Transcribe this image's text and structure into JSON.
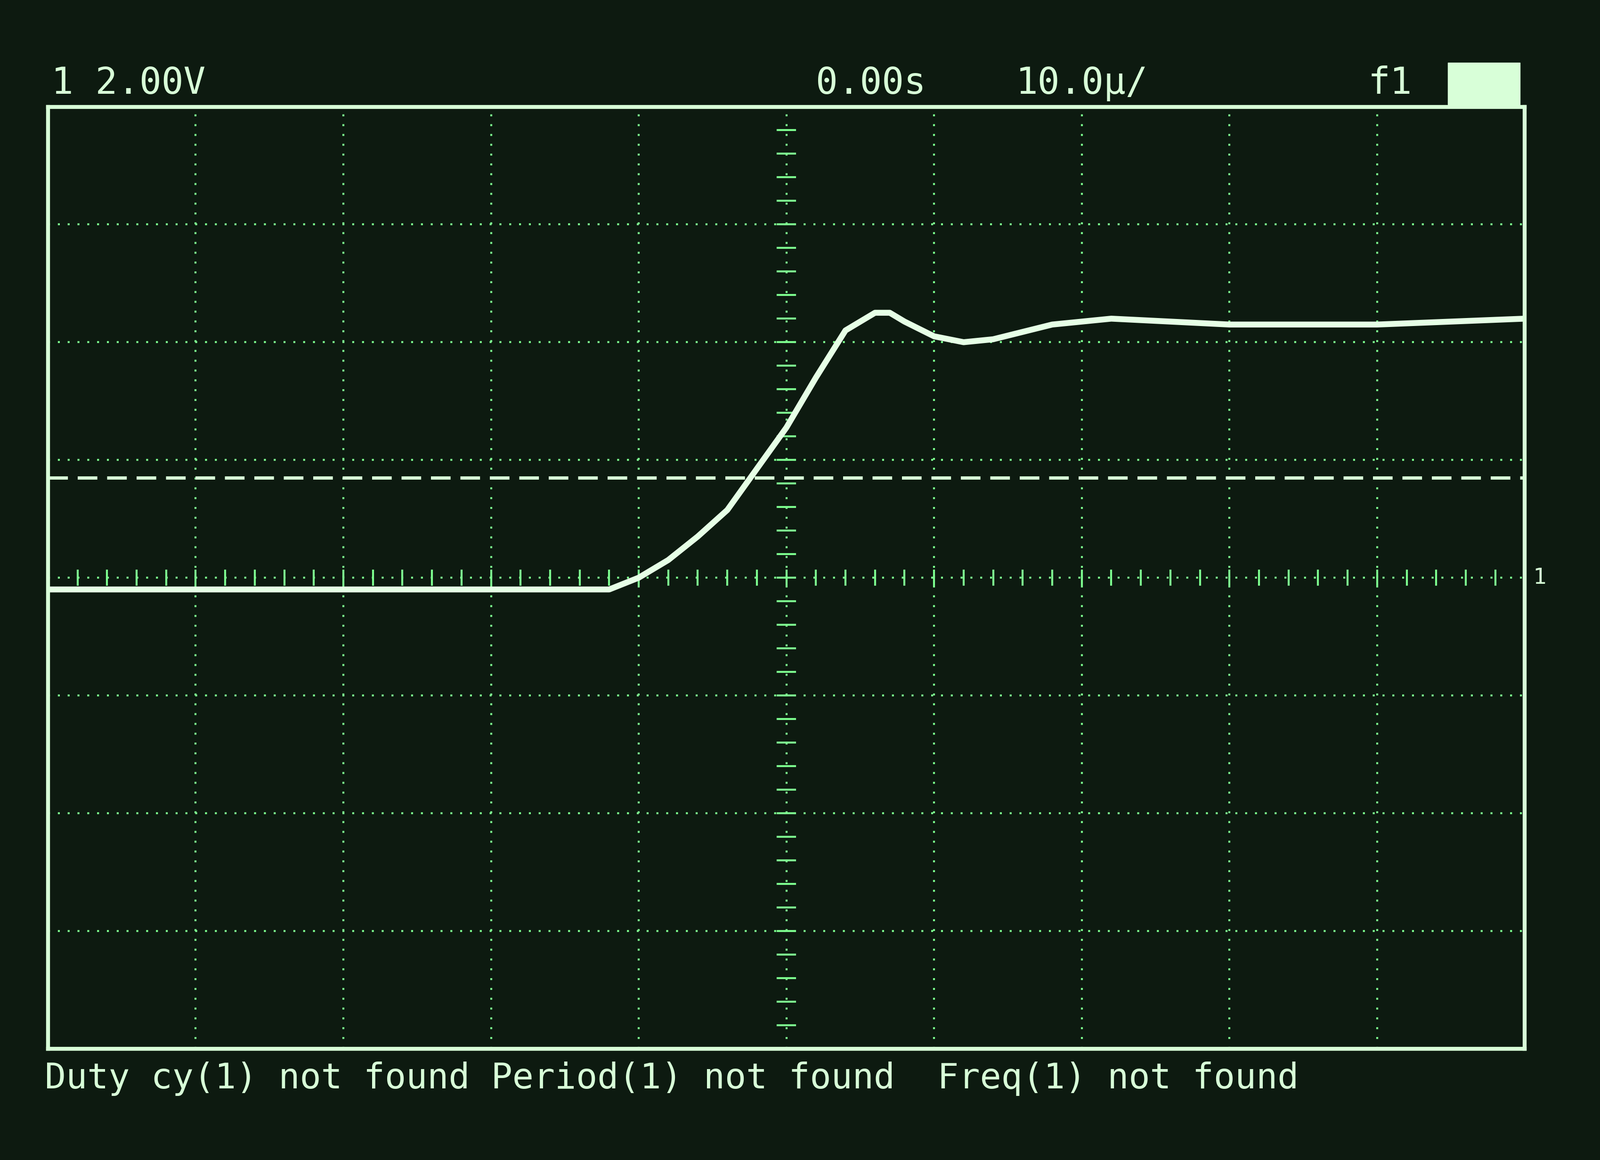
{
  "chart_data": {
    "type": "line",
    "channel_label": "1 2.00V",
    "time_offset": "0.00s",
    "timebase": "10.0µ/",
    "trigger_source": "f1",
    "ground_marker": "1",
    "measurements": "Duty cy(1) not found Period(1) not found  Freq(1) not found",
    "x": [
      -50,
      -12,
      -10,
      -8,
      -6,
      -4,
      -2,
      0,
      2,
      4,
      6,
      7,
      8,
      10,
      12,
      14,
      18,
      22,
      30,
      40,
      50
    ],
    "values": [
      -0.2,
      -0.2,
      0.0,
      0.3,
      0.7,
      1.15,
      1.85,
      2.55,
      3.4,
      4.2,
      4.5,
      4.5,
      4.35,
      4.1,
      4.0,
      4.05,
      4.3,
      4.4,
      4.3,
      4.3,
      4.4
    ],
    "trigger_level": 1.7,
    "color": "#e6ffe6",
    "xlim": [
      -50,
      50
    ],
    "ylim": [
      -8,
      8
    ],
    "xticks": [
      -50,
      -40,
      -30,
      -20,
      -10,
      0,
      10,
      20,
      30,
      40,
      50
    ],
    "yticks": [
      -8,
      -6,
      -4,
      -2,
      0,
      2,
      4,
      6,
      8
    ],
    "grid": true,
    "tick_labels": false
  }
}
